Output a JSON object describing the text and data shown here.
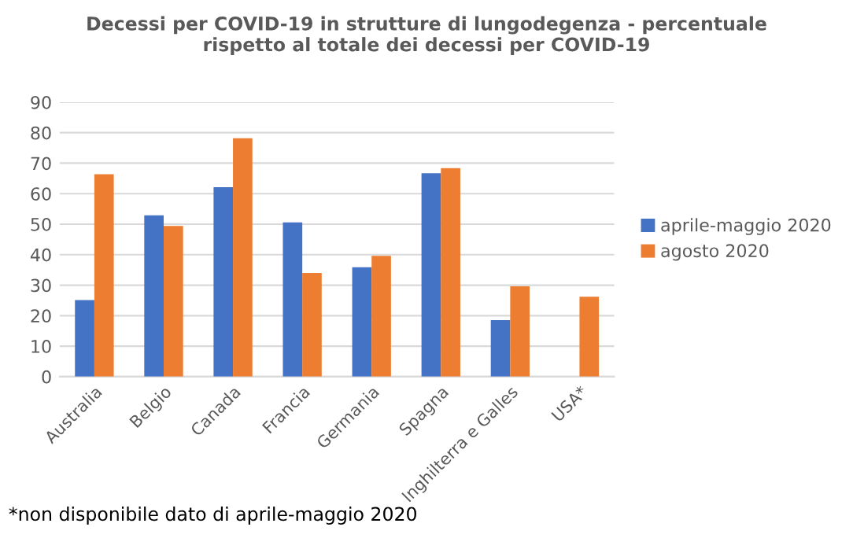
{
  "chart_data": {
    "type": "bar",
    "title": "Decessi per COVID-19 in strutture di lungodegenza - percentuale\nrispetto al totale dei decessi per COVID-19",
    "categories": [
      "Australia",
      "Belgio",
      "Canada",
      "Francia",
      "Germania",
      "Spagna",
      "Inghilterra e Galles",
      "USA*"
    ],
    "series": [
      {
        "name": "aprile-maggio 2020",
        "color": "#4472c4",
        "values": [
          25.1,
          52.9,
          62.1,
          50.6,
          35.9,
          66.7,
          18.5,
          null
        ]
      },
      {
        "name": "agosto 2020",
        "color": "#ed7d31",
        "values": [
          66.4,
          49.4,
          78.2,
          34.0,
          39.6,
          68.4,
          29.6,
          26.2
        ]
      }
    ],
    "ylim": [
      0,
      90
    ],
    "yticks": [
      0,
      10,
      20,
      30,
      40,
      50,
      60,
      70,
      80,
      90
    ],
    "grid": "y",
    "legend": "right",
    "annotations": [
      "*non disponibile dato di aprile-maggio 2020"
    ]
  }
}
